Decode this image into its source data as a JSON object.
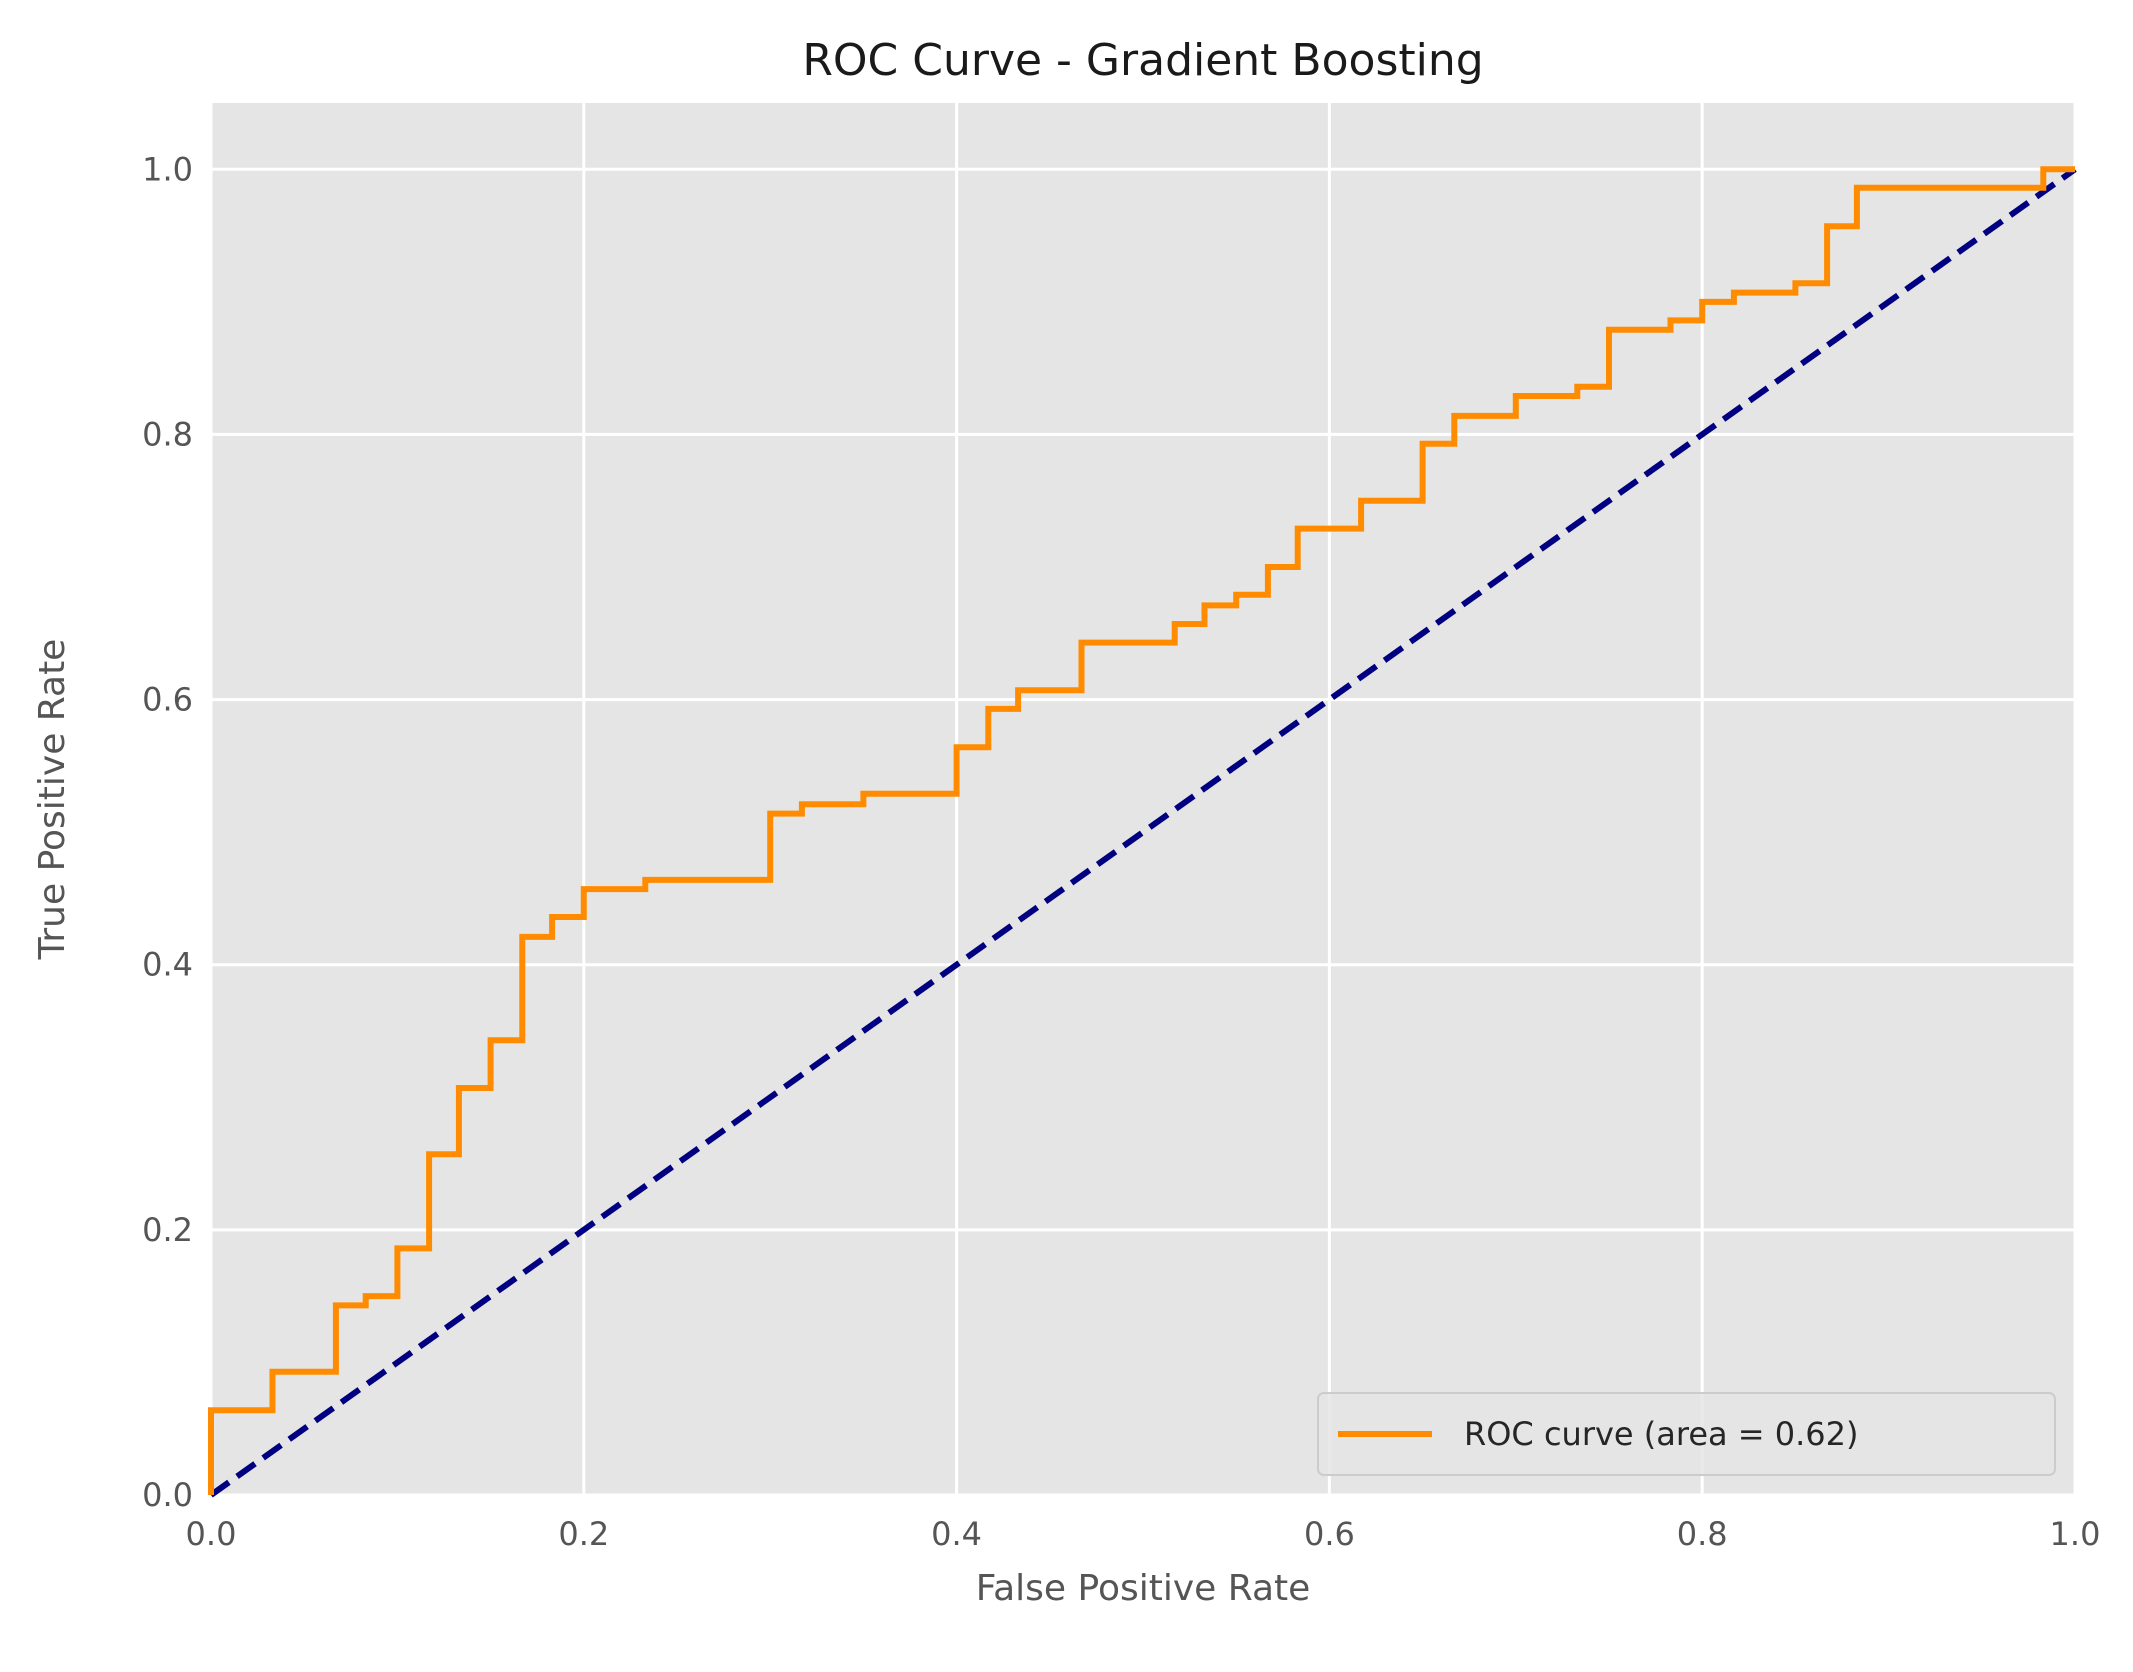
{
  "chart_data": {
    "type": "line",
    "title": "ROC Curve - Gradient Boosting",
    "xlabel": "False Positive Rate",
    "ylabel": "True Positive Rate",
    "xlim": [
      0.0,
      1.0
    ],
    "ylim": [
      0.0,
      1.05
    ],
    "xticks": [
      "0.0",
      "0.2",
      "0.4",
      "0.6",
      "0.8",
      "1.0"
    ],
    "yticks": [
      "0.0",
      "0.2",
      "0.4",
      "0.6",
      "0.8",
      "1.0"
    ],
    "grid": true,
    "legend_position": "lower-right",
    "series": [
      {
        "name": "ROC curve (area = 0.62)",
        "color": "#ff8c00",
        "style": "solid",
        "x": [
          0.0,
          0.0,
          0.033,
          0.033,
          0.067,
          0.067,
          0.083,
          0.083,
          0.1,
          0.1,
          0.117,
          0.117,
          0.133,
          0.133,
          0.15,
          0.15,
          0.167,
          0.167,
          0.183,
          0.183,
          0.2,
          0.2,
          0.233,
          0.233,
          0.3,
          0.3,
          0.317,
          0.317,
          0.35,
          0.35,
          0.4,
          0.4,
          0.417,
          0.417,
          0.433,
          0.433,
          0.467,
          0.467,
          0.517,
          0.517,
          0.533,
          0.533,
          0.55,
          0.55,
          0.567,
          0.567,
          0.583,
          0.583,
          0.617,
          0.617,
          0.65,
          0.65,
          0.667,
          0.667,
          0.7,
          0.7,
          0.733,
          0.733,
          0.75,
          0.75,
          0.783,
          0.783,
          0.8,
          0.8,
          0.817,
          0.817,
          0.85,
          0.85,
          0.867,
          0.867,
          0.883,
          0.883,
          0.983,
          0.983,
          1.0
        ],
        "y": [
          0.0,
          0.064,
          0.064,
          0.093,
          0.093,
          0.143,
          0.143,
          0.15,
          0.15,
          0.186,
          0.186,
          0.257,
          0.257,
          0.307,
          0.307,
          0.343,
          0.343,
          0.421,
          0.421,
          0.436,
          0.436,
          0.457,
          0.457,
          0.464,
          0.464,
          0.514,
          0.514,
          0.521,
          0.521,
          0.529,
          0.529,
          0.564,
          0.564,
          0.593,
          0.593,
          0.607,
          0.607,
          0.643,
          0.643,
          0.657,
          0.657,
          0.671,
          0.671,
          0.679,
          0.679,
          0.7,
          0.7,
          0.729,
          0.729,
          0.75,
          0.75,
          0.793,
          0.793,
          0.814,
          0.814,
          0.829,
          0.829,
          0.836,
          0.836,
          0.879,
          0.879,
          0.886,
          0.886,
          0.9,
          0.9,
          0.907,
          0.907,
          0.914,
          0.914,
          0.957,
          0.957,
          0.986,
          0.986,
          1.0,
          1.0
        ]
      },
      {
        "name": "",
        "color": "#000080",
        "style": "dashed",
        "x": [
          0.0,
          1.0
        ],
        "y": [
          0.0,
          1.0
        ]
      }
    ]
  },
  "colors": {
    "plot_background": "#e5e5e5",
    "grid": "#ffffff",
    "roc_line": "#ff8c00",
    "diagonal": "#000080"
  }
}
